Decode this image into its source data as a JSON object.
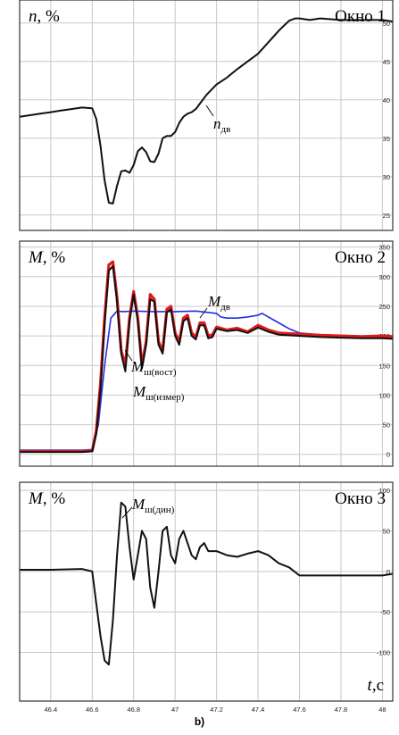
{
  "figure": {
    "caption": "b)",
    "colors": {
      "black_trace": "#111111",
      "blue_trace": "#1f2fe6",
      "red_trace": "#e01b1b",
      "grid": "#c8c8c8",
      "frame": "#333333"
    }
  },
  "chart_data": [
    {
      "type": "line",
      "window_label": "Окно 1",
      "ylabel_symbol": "n",
      "ylabel_unit": ", %",
      "xlim": [
        46.25,
        48.05
      ],
      "ylim": [
        23,
        53
      ],
      "yticks": [
        25,
        30,
        35,
        40,
        45,
        50
      ],
      "grid": true,
      "series": [
        {
          "color": "#111111",
          "x": [
            46.25,
            46.3,
            46.35,
            46.4,
            46.45,
            46.5,
            46.55,
            46.6,
            46.62,
            46.64,
            46.66,
            46.68,
            46.7,
            46.72,
            46.74,
            46.76,
            46.78,
            46.8,
            46.82,
            46.84,
            46.86,
            46.88,
            46.9,
            46.92,
            46.94,
            46.96,
            46.98,
            47.0,
            47.02,
            47.04,
            47.06,
            47.08,
            47.1,
            47.15,
            47.2,
            47.25,
            47.3,
            47.35,
            47.4,
            47.45,
            47.5,
            47.55,
            47.58,
            47.6,
            47.65,
            47.7,
            47.8,
            47.9,
            48.0,
            48.05
          ],
          "y": [
            37.8,
            38.0,
            38.2,
            38.4,
            38.6,
            38.8,
            39.0,
            38.9,
            37.5,
            34.0,
            29.5,
            26.6,
            26.5,
            28.8,
            30.7,
            30.8,
            30.5,
            31.5,
            33.3,
            33.8,
            33.2,
            32.0,
            31.9,
            33.0,
            35.0,
            35.3,
            35.3,
            35.8,
            37.0,
            37.8,
            38.2,
            38.4,
            38.8,
            40.6,
            42.0,
            42.9,
            44.0,
            45.0,
            46.0,
            47.5,
            49.0,
            50.3,
            50.6,
            50.6,
            50.4,
            50.6,
            50.4,
            50.4,
            50.4,
            50.2
          ]
        }
      ],
      "annotations": [
        {
          "symbol": "n",
          "subscript": "дв"
        }
      ]
    },
    {
      "type": "line",
      "window_label": "Окно 2",
      "ylabel_symbol": "M",
      "ylabel_unit": ", %",
      "xlim": [
        46.25,
        48.05
      ],
      "ylim": [
        -20,
        360
      ],
      "yticks": [
        0,
        50,
        100,
        150,
        200,
        250,
        300,
        350
      ],
      "grid": true,
      "series": [
        {
          "color": "#1f2fe6",
          "x": [
            46.25,
            46.4,
            46.55,
            46.6,
            46.63,
            46.66,
            46.69,
            46.72,
            46.75,
            46.8,
            46.9,
            47.0,
            47.1,
            47.2,
            47.22,
            47.25,
            47.3,
            47.35,
            47.4,
            47.42,
            47.45,
            47.5,
            47.55,
            47.6,
            47.7,
            47.8,
            47.9,
            48.0,
            48.05
          ],
          "y": [
            7,
            7,
            7,
            8,
            50,
            150,
            230,
            242,
            241,
            242,
            241,
            241,
            242,
            238,
            232,
            230,
            230,
            232,
            235,
            238,
            232,
            222,
            212,
            205,
            202,
            200,
            199,
            198,
            197
          ]
        },
        {
          "color": "#e01b1b",
          "x": [
            46.25,
            46.4,
            46.55,
            46.6,
            46.62,
            46.64,
            46.66,
            46.68,
            46.7,
            46.72,
            46.74,
            46.76,
            46.78,
            46.8,
            46.82,
            46.84,
            46.86,
            46.88,
            46.9,
            46.92,
            46.94,
            46.96,
            46.98,
            47.0,
            47.02,
            47.04,
            47.06,
            47.08,
            47.1,
            47.12,
            47.14,
            47.16,
            47.18,
            47.2,
            47.25,
            47.3,
            47.35,
            47.4,
            47.45,
            47.5,
            47.6,
            47.7,
            47.8,
            47.9,
            48.0,
            48.05
          ],
          "y": [
            5,
            5,
            5,
            6,
            40,
            120,
            230,
            320,
            325,
            265,
            175,
            150,
            230,
            275,
            230,
            150,
            190,
            270,
            262,
            190,
            175,
            245,
            250,
            205,
            190,
            230,
            235,
            205,
            198,
            222,
            222,
            200,
            202,
            215,
            210,
            213,
            207,
            218,
            210,
            205,
            203,
            201,
            200,
            199,
            200,
            199
          ]
        },
        {
          "color": "#111111",
          "x": [
            46.25,
            46.4,
            46.55,
            46.6,
            46.62,
            46.64,
            46.66,
            46.68,
            46.7,
            46.72,
            46.74,
            46.76,
            46.78,
            46.8,
            46.82,
            46.84,
            46.86,
            46.88,
            46.9,
            46.92,
            46.94,
            46.96,
            46.98,
            47.0,
            47.02,
            47.04,
            47.06,
            47.08,
            47.1,
            47.12,
            47.14,
            47.16,
            47.18,
            47.2,
            47.25,
            47.3,
            47.35,
            47.4,
            47.45,
            47.5,
            47.6,
            47.7,
            47.8,
            47.9,
            48.0,
            48.05
          ],
          "y": [
            4,
            4,
            4,
            5,
            35,
            110,
            220,
            310,
            318,
            258,
            170,
            140,
            225,
            270,
            225,
            145,
            185,
            262,
            258,
            185,
            170,
            240,
            245,
            200,
            185,
            225,
            230,
            200,
            194,
            218,
            218,
            196,
            198,
            212,
            208,
            210,
            205,
            214,
            207,
            202,
            200,
            198,
            197,
            196,
            196,
            195
          ]
        }
      ],
      "annotations": [
        {
          "symbol": "M",
          "subscript": "дв"
        },
        {
          "symbol": "M",
          "subscript": "ш(вост)"
        },
        {
          "symbol": "M",
          "subscript": "ш(измер)"
        }
      ]
    },
    {
      "type": "line",
      "window_label": "Окно 3",
      "ylabel_symbol": "M",
      "ylabel_unit": ", %",
      "xlabel_symbol": "t",
      "xlabel_unit": ",c",
      "xlim": [
        46.25,
        48.05
      ],
      "ylim": [
        -160,
        110
      ],
      "yticks": [
        -100,
        -50,
        0,
        50,
        100
      ],
      "xticks": [
        46.4,
        46.6,
        46.8,
        47,
        47.2,
        47.4,
        47.6,
        47.8,
        48
      ],
      "grid": true,
      "series": [
        {
          "color": "#111111",
          "x": [
            46.25,
            46.4,
            46.55,
            46.6,
            46.62,
            46.64,
            46.66,
            46.68,
            46.7,
            46.72,
            46.74,
            46.76,
            46.78,
            46.8,
            46.82,
            46.84,
            46.86,
            46.88,
            46.9,
            46.92,
            46.94,
            46.96,
            46.98,
            47.0,
            47.02,
            47.04,
            47.06,
            47.08,
            47.1,
            47.12,
            47.14,
            47.16,
            47.2,
            47.25,
            47.3,
            47.35,
            47.4,
            47.45,
            47.5,
            47.55,
            47.6,
            47.7,
            47.8,
            47.9,
            48.0,
            48.05
          ],
          "y": [
            2,
            2,
            3,
            0,
            -40,
            -80,
            -110,
            -115,
            -60,
            20,
            85,
            80,
            30,
            -10,
            20,
            50,
            40,
            -20,
            -45,
            0,
            50,
            55,
            20,
            10,
            40,
            50,
            35,
            20,
            15,
            30,
            35,
            25,
            25,
            20,
            18,
            22,
            25,
            20,
            10,
            5,
            -5,
            -5,
            -5,
            -5,
            -5,
            -3
          ]
        }
      ],
      "annotations": [
        {
          "symbol": "M",
          "subscript": "ш(дин)"
        }
      ]
    }
  ]
}
